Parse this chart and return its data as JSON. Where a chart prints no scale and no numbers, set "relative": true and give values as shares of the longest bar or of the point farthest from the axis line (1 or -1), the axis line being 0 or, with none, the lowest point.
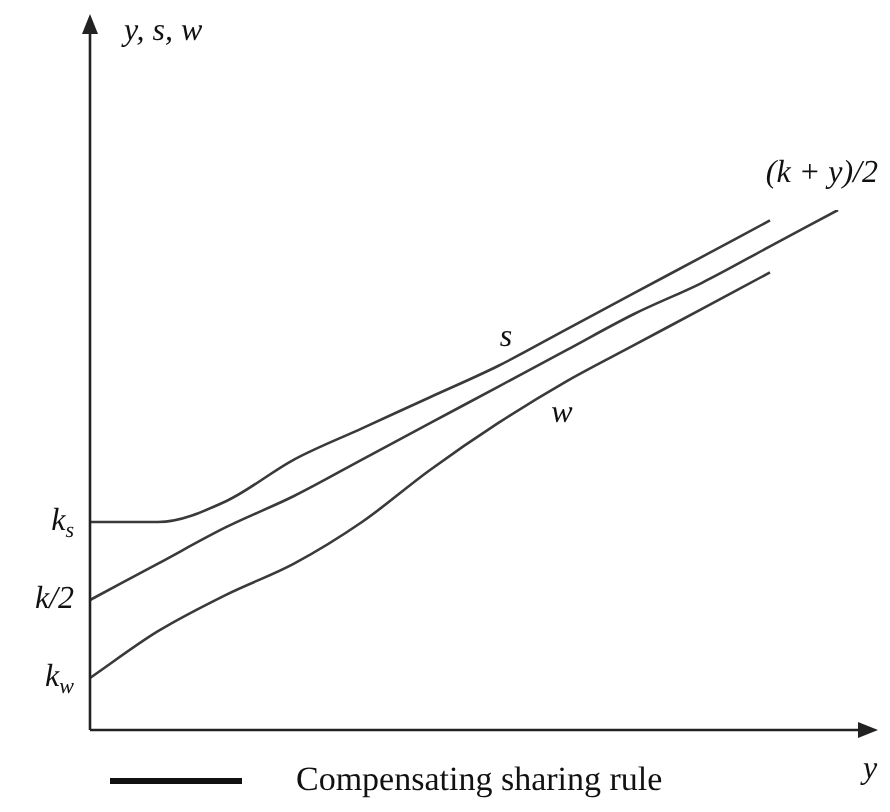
{
  "chart_data": {
    "type": "line",
    "relative": true,
    "xlabel": "y",
    "categories": [
      null,
      null,
      null,
      null,
      null,
      null,
      null,
      null,
      null,
      null,
      null,
      null
    ],
    "series": [
      {
        "name": "s",
        "color": "#3a3a3a",
        "values": [
          0.4,
          0.4,
          0.44,
          0.52,
          0.58,
          0.64,
          0.7,
          0.77,
          0.84,
          0.91,
          0.98,
          null
        ]
      },
      {
        "name": "(k + y)/2",
        "color": "#3a3a3a",
        "values": [
          0.25,
          0.32,
          0.39,
          0.45,
          0.52,
          0.59,
          0.66,
          0.73,
          0.8,
          0.86,
          0.93,
          1.0
        ]
      },
      {
        "name": "w",
        "color": "#3a3a3a",
        "values": [
          0.1,
          0.19,
          0.26,
          0.32,
          0.4,
          0.5,
          0.59,
          0.67,
          0.74,
          0.81,
          0.88,
          null
        ]
      }
    ],
    "annotations": [
      "y, s, w",
      "k$_{s}$",
      "k/2",
      "k$_{w}$",
      "Compensating sharing rule"
    ],
    "marker": "none",
    "legend": false
  }
}
